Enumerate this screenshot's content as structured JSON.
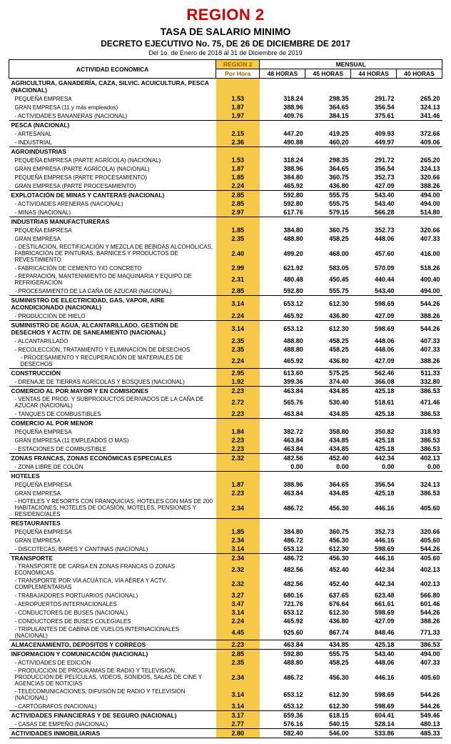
{
  "header": {
    "region": "REGION 2",
    "title": "TASA DE SALARIO MINIMO",
    "decree": "DECRETO EJECUTIVO No. 75,  DE  26 DE DICIEMBRE DE 2017",
    "period": "Del 1o. de Enero de 2018 al 31 de Diciembre de 2019"
  },
  "columns": {
    "activity": "ACTIVIDAD ECONOMICA",
    "region": "REGION 2",
    "mensual": "MENSUAL",
    "porhora": "Por Hora",
    "h48": "48 HORAS",
    "h45": "45 HORAS",
    "h44": "44 HORAS",
    "h40": "40 HORAS"
  },
  "colors": {
    "accent_red": "#d40000",
    "highlight": "#f7c948",
    "border": "#000000"
  },
  "rows": [
    {
      "t": "cat",
      "label": "AGRICULTURA, GANADERÍA, CAZA, SILVIC. ACUICULTURA, PESCA (NACIONAL)"
    },
    {
      "t": "sub",
      "label": "PEQUEÑA EMPRESA",
      "ph": "1.53",
      "v": [
        "318.24",
        "298.35",
        "291.72",
        "265.20"
      ]
    },
    {
      "t": "sub",
      "label": "GRAN EMPRESA (11 y más empleados)",
      "ph": "1.87",
      "v": [
        "388.96",
        "364.65",
        "356.54",
        "324.13"
      ]
    },
    {
      "t": "sub",
      "label": "- ACTIVIDADES BANANERAS (NACIONAL)",
      "ph": "1.97",
      "v": [
        "409.76",
        "384.15",
        "375.61",
        "341.46"
      ],
      "bline": true
    },
    {
      "t": "cat",
      "label": "PESCA (NACIONAL)"
    },
    {
      "t": "sub",
      "label": "- ARTESANAL",
      "ph": "2.15",
      "v": [
        "447.20",
        "419.25",
        "409.93",
        "372.66"
      ]
    },
    {
      "t": "sub",
      "label": "- INDUSTRIAL",
      "ph": "2.36",
      "v": [
        "490.88",
        "460.20",
        "449.97",
        "409.06"
      ],
      "bline": true
    },
    {
      "t": "cat",
      "label": "AGROINDUSTRIAS"
    },
    {
      "t": "sub",
      "label": "PEQUEÑA EMPRESA (PARTE AGRÍCOLA) (NACIONAL)",
      "ph": "1.53",
      "v": [
        "318.24",
        "298.35",
        "291.72",
        "265.20"
      ]
    },
    {
      "t": "sub",
      "label": "GRAN EMPRESA (PARTE AGRÍCOLA) (NACIONAL)",
      "ph": "1.87",
      "v": [
        "388.96",
        "364.65",
        "356.54",
        "324.13"
      ]
    },
    {
      "t": "sub",
      "label": "PEQUEÑA EMPRESA (PARTE PROCESAMIENTO)",
      "ph": "1.85",
      "v": [
        "384.80",
        "360.75",
        "352.73",
        "320.66"
      ]
    },
    {
      "t": "sub",
      "label": "GRAN EMPRESA (PARTE PROCESAMIENTO)",
      "ph": "2.24",
      "v": [
        "465.92",
        "436.80",
        "427.09",
        "388.26"
      ],
      "bline": true
    },
    {
      "t": "cat",
      "label": "EXPLOTACIÓN DE MINAS Y CANTERAS (NACIONAL)",
      "ph": "2.85",
      "v": [
        "592.80",
        "555.75",
        "543.40",
        "494.00"
      ],
      "btop": true
    },
    {
      "t": "sub",
      "label": "- ACTIVIDADES ARENERAS (NACIONAL)",
      "ph": "2.85",
      "v": [
        "592.80",
        "555.75",
        "543.40",
        "494.00"
      ]
    },
    {
      "t": "sub",
      "label": "- MINAS (NACIONAL)",
      "ph": "2.97",
      "v": [
        "617.76",
        "579.15",
        "566.28",
        "514.80"
      ],
      "bline": true
    },
    {
      "t": "cat",
      "label": "INDUSTRIAS MANUFACTURERAS"
    },
    {
      "t": "sub",
      "label": "PEQUEÑA EMPRESA",
      "ph": "1.85",
      "v": [
        "384.80",
        "360.75",
        "352.73",
        "320.66"
      ]
    },
    {
      "t": "sub",
      "label": "GRAN EMPRESA",
      "ph": "2.35",
      "v": [
        "488.80",
        "458.25",
        "448.06",
        "407.33"
      ]
    },
    {
      "t": "sub",
      "label": "- DESTILACIÓN, RECTIFICACIÓN Y MEZCLA DE BEBIDAS ALCOHÓLICAS, FABRICACIÓN DE PINTURAS, BARNICES Y PRODUCTOS DE REVESTIMIENTO",
      "ph": "2.40",
      "v": [
        "499.20",
        "468.00",
        "457.60",
        "416.00"
      ]
    },
    {
      "t": "sub",
      "label": "- FABRICACIÓN DE CEMENTO Y/O CONCRETO",
      "ph": "2.99",
      "v": [
        "621.92",
        "583.05",
        "570.09",
        "518.26"
      ]
    },
    {
      "t": "sub",
      "label": "- REPARACIÓN, MANTENIMIENTO DE MAQUINARIA Y EQUIPO DE REFRIGERACIÓN",
      "ph": "2.31",
      "v": [
        "480.48",
        "450.45",
        "440.44",
        "400.40"
      ]
    },
    {
      "t": "sub",
      "label": "- PROCESAMIENTO DE LA CAÑA DE AZUCAR (NACIONAL)",
      "ph": "2.85",
      "v": [
        "592.80",
        "555.75",
        "543.40",
        "494.00"
      ],
      "bline": true
    },
    {
      "t": "cat",
      "label": "SUMINISTRO DE ELECTRICIDAD, GAS, VAPOR, AIRE ACONDICIONADO (NACIONAL)",
      "ph": "3.14",
      "v": [
        "653.12",
        "612.30",
        "598.69",
        "544.26"
      ]
    },
    {
      "t": "sub",
      "label": "- PRODUCCIÓN DE HIELO",
      "ph": "2.24",
      "v": [
        "465.92",
        "436.80",
        "427.09",
        "388.26"
      ],
      "bline": true
    },
    {
      "t": "cat",
      "label": "SUMINISTRO DE AGUA, ALCANTARILLADO, GESTIÓN DE DESECHOS Y ACTIV. DE SANEAMIENTO (NACIONAL)",
      "ph": "3.14",
      "v": [
        "653.12",
        "612.30",
        "598.69",
        "544.26"
      ]
    },
    {
      "t": "sub",
      "label": "- ALCANTARILLADO",
      "ph": "2.35",
      "v": [
        "488.80",
        "458.25",
        "448.06",
        "407.33"
      ]
    },
    {
      "t": "sub",
      "label": "- RECOLECCIÓN, TRATAMIENTO Y ELIMINACIÓN DE DESECHOS",
      "ph": "2.35",
      "v": [
        "488.80",
        "458.25",
        "448.06",
        "407.33"
      ]
    },
    {
      "t": "sub2",
      "label": "- PROCESAMIENTO Y RECUPERACIÓN DE MATERIALES DE DESECHOS",
      "ph": "2.24",
      "v": [
        "465.92",
        "436.80",
        "427.09",
        "388.26"
      ],
      "bline": true
    },
    {
      "t": "cat",
      "label": "CONSTRUCCIÓN",
      "ph": "2.95",
      "v": [
        "613.60",
        "575.25",
        "562.46",
        "511.33"
      ]
    },
    {
      "t": "sub",
      "label": "- DRENAJE DE TIERRAS AGRÍCOLAS Y BOSQUES (NACIONAL)",
      "ph": "1.92",
      "v": [
        "399.36",
        "374.40",
        "366.08",
        "332.80"
      ],
      "bline": true
    },
    {
      "t": "cat",
      "label": "COMERCIO AL POR MAYOR Y EN COMISIONES",
      "ph": "2.23",
      "v": [
        "463.84",
        "434.85",
        "425.18",
        "386.53"
      ]
    },
    {
      "t": "sub",
      "label": "- VENTAS DE PROD. Y SUBPRODUCTOS DERIVADOS DE LA CAÑA DE AZÚCAR (NACIONAL)",
      "ph": "2.72",
      "v": [
        "565.76",
        "530.40",
        "518.61",
        "471.46"
      ]
    },
    {
      "t": "sub",
      "label": "- TANQUES DE COMBUSTIBLES",
      "ph": "2.23",
      "v": [
        "463.84",
        "434.85",
        "425.18",
        "386.53"
      ],
      "bline": true
    },
    {
      "t": "cat",
      "label": "COMERCIO AL POR MENOR"
    },
    {
      "t": "sub",
      "label": "PEQUEÑA EMPRESA",
      "ph": "1.84",
      "v": [
        "382.72",
        "358.80",
        "350.82",
        "318.93"
      ]
    },
    {
      "t": "sub",
      "label": "GRAN EMPRESA   (11  EMPLEADOS O MAS)",
      "ph": "2.23",
      "v": [
        "463.84",
        "434.85",
        "425.18",
        "386.53"
      ]
    },
    {
      "t": "sub",
      "label": "- ESTACIONES DE COMBUSTIBLE",
      "ph": "2.23",
      "v": [
        "463.84",
        "434.85",
        "425.18",
        "386.53"
      ],
      "bline": true
    },
    {
      "t": "cat",
      "label": "ZONAS FRANCAS, ZONAS ECONÓMICAS ESPECIALES",
      "ph": "2.32",
      "v": [
        "482.56",
        "452.40",
        "442.34",
        "402.13"
      ]
    },
    {
      "t": "sub",
      "label": "- ZONA LIBRE DE COLÓN",
      "ph": "",
      "v": [
        "0.00",
        "0.00",
        "0.00",
        "0.00"
      ],
      "bline": true
    },
    {
      "t": "cat",
      "label": "HOTELES"
    },
    {
      "t": "sub",
      "label": "PEQUEÑA EMPRESA",
      "ph": "1.87",
      "v": [
        "388.96",
        "364.65",
        "356.54",
        "324.13"
      ]
    },
    {
      "t": "sub",
      "label": "GRAN EMPRESA",
      "ph": "2.23",
      "v": [
        "463.84",
        "434.85",
        "425.18",
        "386.53"
      ]
    },
    {
      "t": "sub",
      "label": "- HOTELES Y RESORTS CON FRANQUICIAS; HOTELES CON MAS DE 200 HABITACIONES; HOTELES DE OCASIÓN, MOTELES, PENSIONES Y RESIDENCIALES",
      "ph": "2.34",
      "v": [
        "486.72",
        "456.30",
        "446.16",
        "405.60"
      ],
      "bline": true
    },
    {
      "t": "cat",
      "label": "RESTAURANTES"
    },
    {
      "t": "sub",
      "label": "PEQUEÑA EMPRESA",
      "ph": "1.85",
      "v": [
        "384.80",
        "360.75",
        "352.73",
        "320.66"
      ]
    },
    {
      "t": "sub",
      "label": "GRAN EMPRESA",
      "ph": "2.34",
      "v": [
        "486.72",
        "456.30",
        "446.16",
        "405.60"
      ]
    },
    {
      "t": "sub",
      "label": "- DISCOTECAS, BARES Y CANTINAS (NACIONAL)",
      "ph": "3.14",
      "v": [
        "653.12",
        "612.30",
        "598.69",
        "544.26"
      ],
      "bline": true
    },
    {
      "t": "cat",
      "label": "TRANSPORTE",
      "ph": "2.34",
      "v": [
        "486.72",
        "456.30",
        "446.16",
        "405.60"
      ]
    },
    {
      "t": "sub",
      "label": "- TRANSPORTE DE CARGA EN ZONAS FRANCAS O ZONAS ECONÓMICAS",
      "ph": "2.32",
      "v": [
        "482.56",
        "452.40",
        "442.34",
        "402.13"
      ]
    },
    {
      "t": "sub",
      "label": "- TRANSPORTE POR VÍA ACUÁTICA, VÍA AÉREA Y ACTV. COMPLEMENTARIAS",
      "ph": "2.32",
      "v": [
        "482.56",
        "452.40",
        "442.34",
        "402.13"
      ]
    },
    {
      "t": "sub",
      "label": "- TRABAJADORES PORTUARIOS (NACIONAL)",
      "ph": "3.27",
      "v": [
        "680.16",
        "637.65",
        "623.48",
        "566.80"
      ]
    },
    {
      "t": "sub",
      "label": "- AEROPUERTOS INTERNACIONALES",
      "ph": "3.47",
      "v": [
        "721.76",
        "676.64",
        "661.61",
        "601.46"
      ]
    },
    {
      "t": "sub",
      "label": "- CONDUCTORES DE BUSES (NACIONAL)",
      "ph": "3.14",
      "v": [
        "653.12",
        "612.30",
        "598.69",
        "544.26"
      ]
    },
    {
      "t": "sub",
      "label": "- CONDUCTORES DE BUSES COLEGIALES",
      "ph": "2.24",
      "v": [
        "465.92",
        "436.80",
        "427.09",
        "388.26"
      ]
    },
    {
      "t": "sub",
      "label": "- TRIPULANTES DE CABINA DE VUELOS INTERNACIONALES (NACIONAL)",
      "ph": "4.45",
      "v": [
        "925.60",
        "867.74",
        "848.46",
        "771.33"
      ],
      "bline": true
    },
    {
      "t": "cat",
      "label": "ALMACENAMIENTO, DEPOSITOS Y CORREOS",
      "ph": "2.23",
      "v": [
        "463.84",
        "434.85",
        "425.18",
        "386.53"
      ],
      "bline": true
    },
    {
      "t": "cat",
      "label": "INFORMACION Y COMUNICACIÓN (NACIONAL)",
      "ph": "2.85",
      "v": [
        "592.80",
        "555.75",
        "543.40",
        "494.00"
      ]
    },
    {
      "t": "sub",
      "label": "- ACTIVIDADES DE EDICIÓN",
      "ph": "2.35",
      "v": [
        "488.80",
        "458.25",
        "448.06",
        "407.33"
      ]
    },
    {
      "t": "sub",
      "label": "- PRODUCCIÓN DE PROGRAMAS DE RADIO Y TELEVISIÓN, PRODUCCIÓN DE PELÍCULAS, VIDEOS, SONIDOS, SALAS DE CINE Y AGENCIAS DE NOTICIAS",
      "ph": "2.34",
      "v": [
        "486.72",
        "456.30",
        "446.16",
        "405.60"
      ]
    },
    {
      "t": "sub",
      "label": "- TELECOMUNICACIONES, DIFUSIÓN DE RADIO Y TELEVISIÓN (NACIONAL)",
      "ph": "3.14",
      "v": [
        "653.12",
        "612.30",
        "598.69",
        "544.26"
      ]
    },
    {
      "t": "sub",
      "label": "- CARTÓGRAFOS (NACIONAL)",
      "ph": "3.14",
      "v": [
        "653.12",
        "612.30",
        "598.69",
        "544.26"
      ],
      "bline": true
    },
    {
      "t": "cat",
      "label": "ACTIVIDADES FINANCIERAS Y DE SEGURO (NACIONAL)",
      "ph": "3.17",
      "v": [
        "659.36",
        "618.15",
        "604.41",
        "549.46"
      ]
    },
    {
      "t": "sub",
      "label": "- CASAS DE EMPEÑO (NACIONAL)",
      "ph": "2.77",
      "v": [
        "576.16",
        "540.15",
        "528.14",
        "480.13"
      ],
      "bline": true
    },
    {
      "t": "cat",
      "label": "ACTIVIDADES INMOBILIARIAS",
      "ph": "2.80",
      "v": [
        "582.40",
        "546.00",
        "533.86",
        "485.33"
      ],
      "bline": true
    }
  ]
}
